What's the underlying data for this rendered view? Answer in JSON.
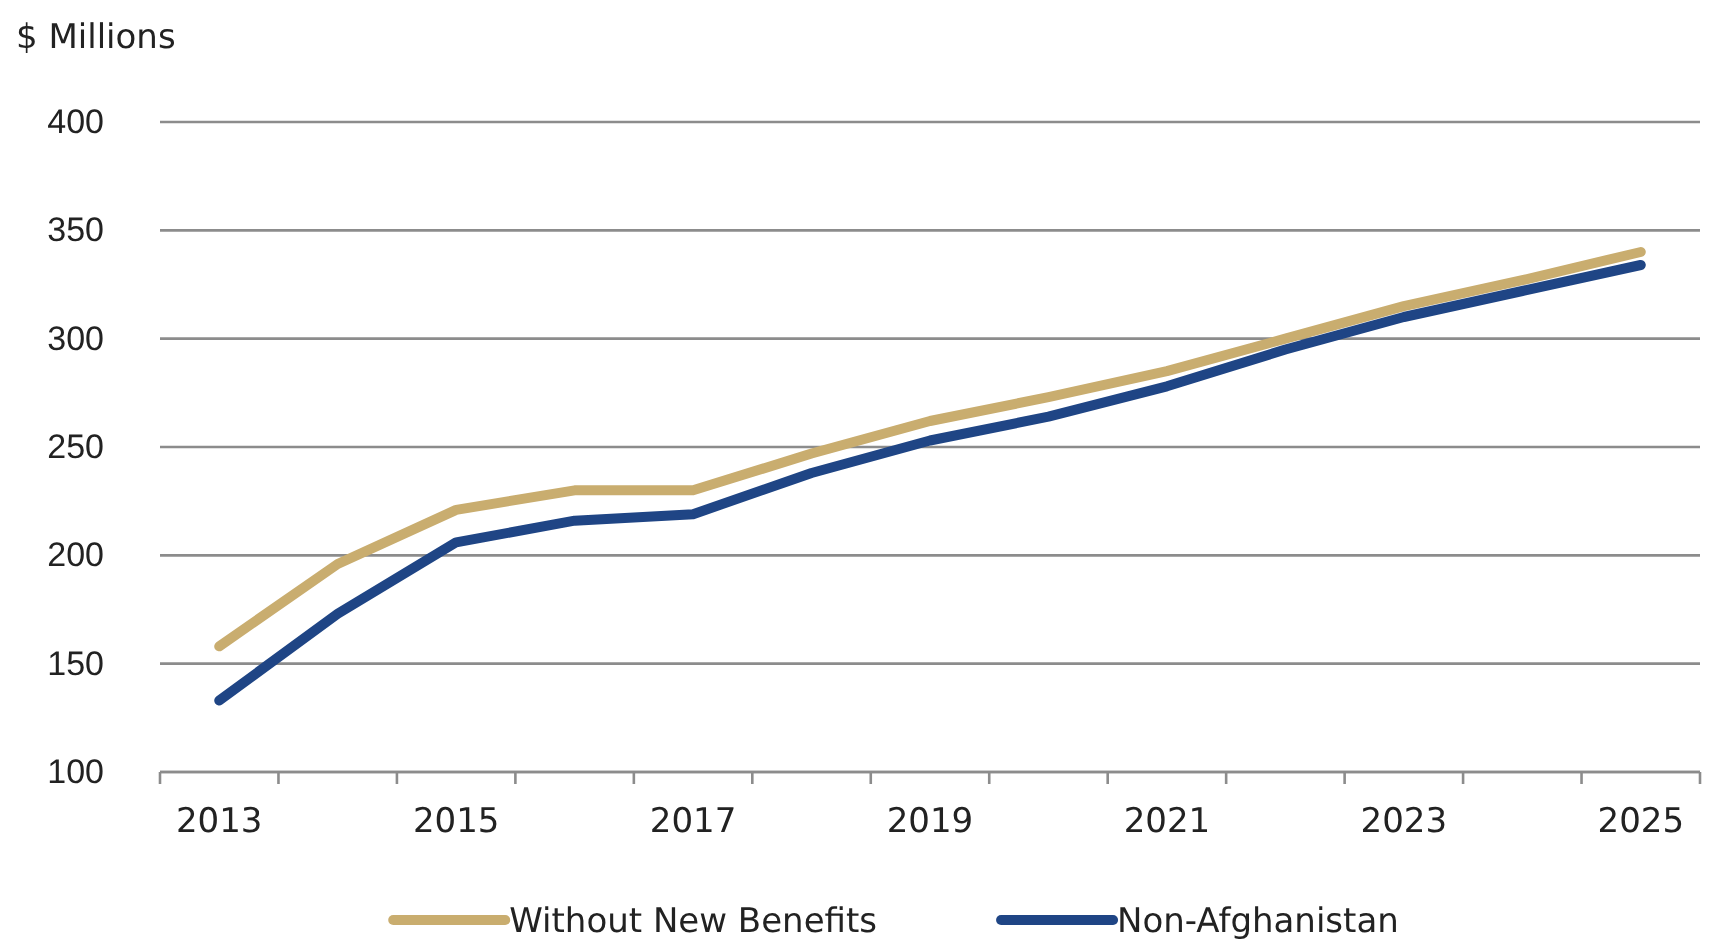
{
  "chart_data": {
    "type": "line",
    "ylabel": "$ Millions",
    "categories": [
      "2013",
      null,
      "2015",
      null,
      "2017",
      null,
      "2019",
      null,
      "2021",
      null,
      "2023",
      null,
      "2025"
    ],
    "series": [
      {
        "name": "Without New Benefits",
        "color": "#c9ad6f",
        "values": [
          158,
          196,
          221,
          230,
          230,
          247,
          262,
          273,
          285,
          300,
          315,
          327,
          340
        ]
      },
      {
        "name": "Non-Afghanistan",
        "color": "#1f4585",
        "values": [
          133,
          173,
          206,
          216,
          219,
          238,
          253,
          264,
          278,
          295,
          310,
          322,
          334
        ]
      }
    ],
    "ylim": [
      100,
      400
    ],
    "yticks": [
      100,
      150,
      200,
      250,
      300,
      350,
      400
    ],
    "grid": "y",
    "legend": "bottom",
    "marker": "none",
    "line_style": "solid"
  }
}
